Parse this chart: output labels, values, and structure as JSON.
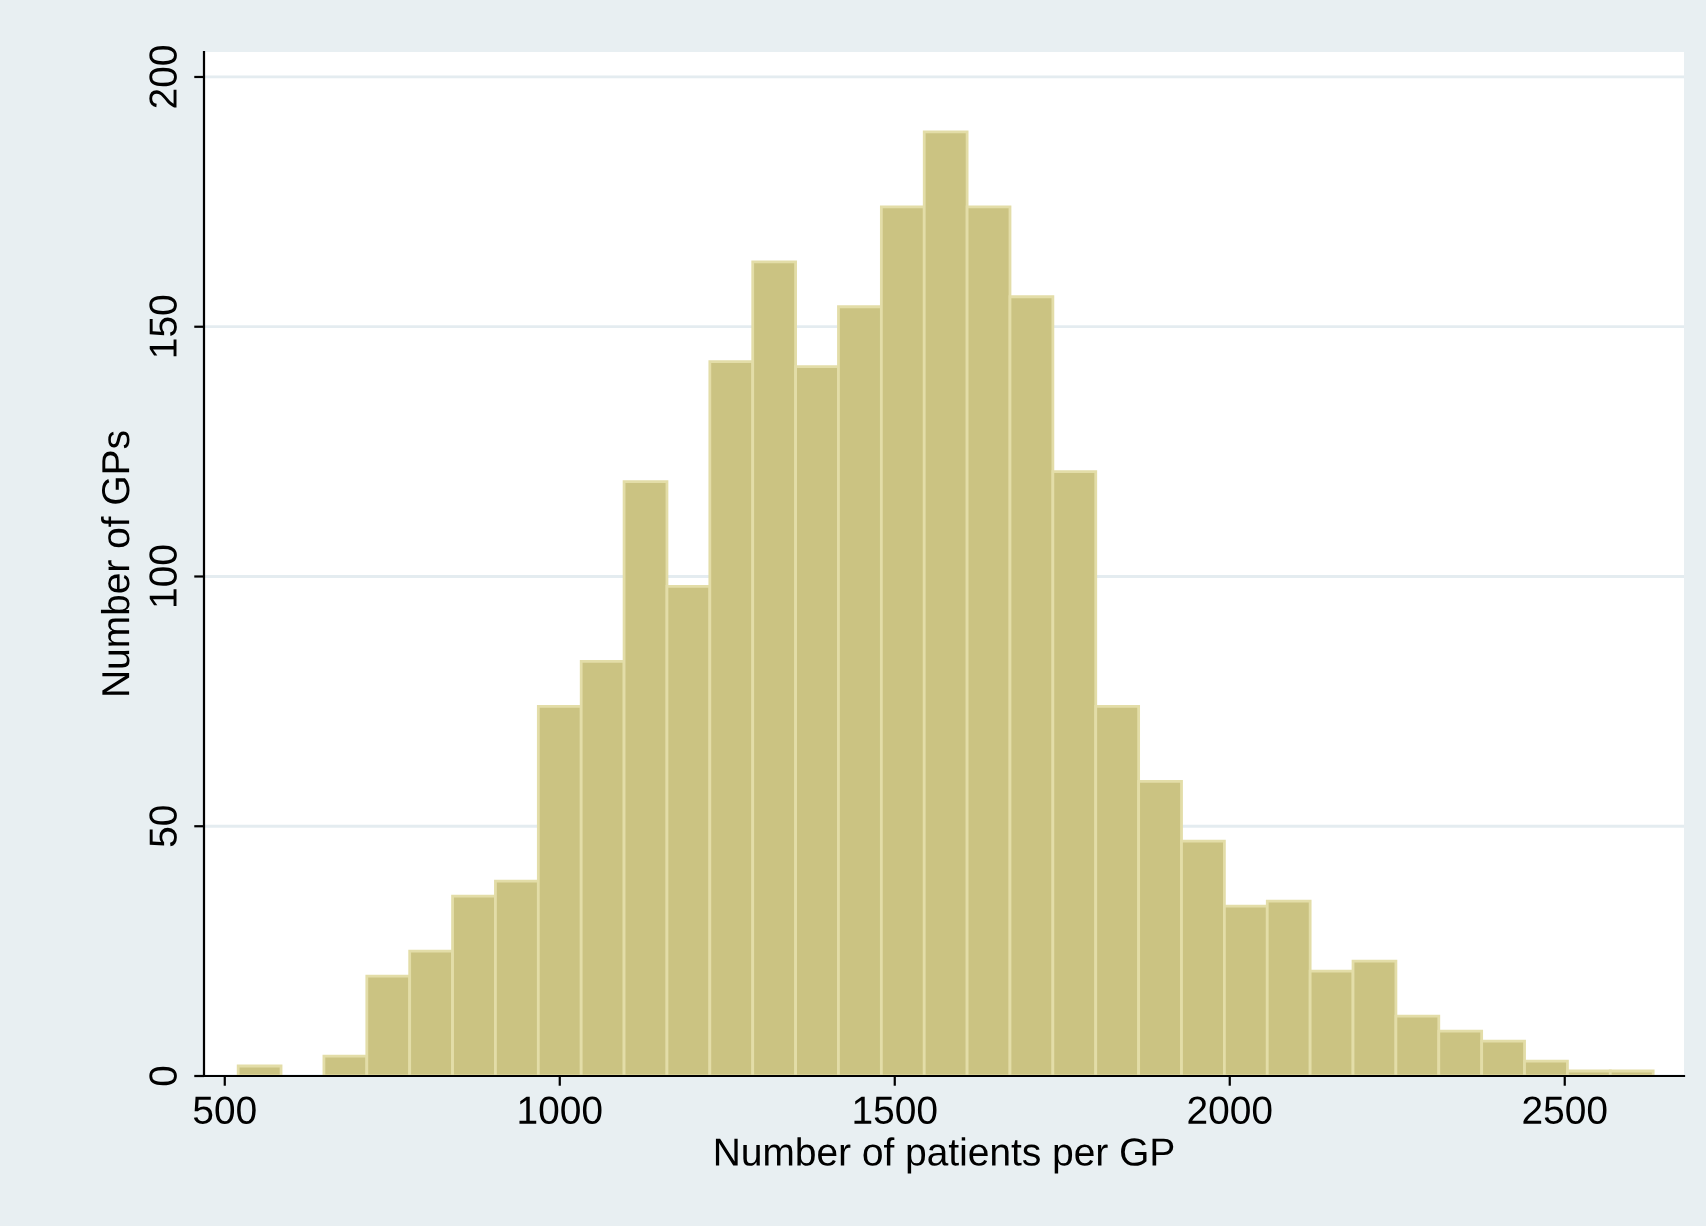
{
  "chart_data": {
    "type": "histogram",
    "xlabel": "Number of patients per GP",
    "ylabel": "Number of GPs",
    "bins": [
      520,
      584,
      648,
      712,
      776,
      840,
      904,
      968,
      1032,
      1096,
      1160,
      1224,
      1288,
      1352,
      1416,
      1480,
      1544,
      1608,
      1672,
      1736,
      1800,
      1864,
      1928,
      1992,
      2056,
      2120,
      2184,
      2248,
      2312,
      2376,
      2440,
      2504,
      2568,
      2632
    ],
    "values": [
      2,
      0,
      4,
      20,
      25,
      36,
      39,
      74,
      83,
      119,
      98,
      143,
      163,
      142,
      154,
      174,
      189,
      174,
      156,
      121,
      74,
      59,
      47,
      34,
      35,
      21,
      23,
      12,
      9,
      7,
      3,
      1,
      1
    ],
    "color": "#cbc382",
    "xlim": [
      469,
      2678
    ],
    "xticks": [
      500,
      1000,
      1500,
      2000,
      2500
    ],
    "ylim": [
      0,
      205
    ],
    "yticks": [
      0,
      50,
      100,
      150,
      200
    ],
    "grid": "y"
  }
}
